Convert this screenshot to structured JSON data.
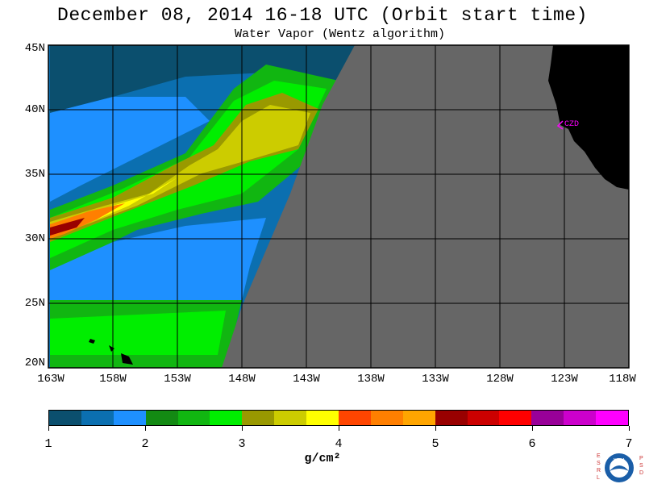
{
  "header": {
    "title": "December 08, 2014  16-18 UTC  (Orbit start time)",
    "subtitle": "Water Vapor (Wentz algorithm)"
  },
  "map": {
    "lat_labels": [
      "45N",
      "40N",
      "35N",
      "30N",
      "25N",
      "20N"
    ],
    "lon_labels": [
      "163W",
      "158W",
      "153W",
      "148W",
      "143W",
      "138W",
      "133W",
      "128W",
      "123W",
      "118W"
    ],
    "station_label": "CZD",
    "colors": {
      "no_data": "#666666",
      "land": "#000000",
      "station": "#ff00ff"
    }
  },
  "legend": {
    "colors": [
      "#0b4f6e",
      "#0b6fb0",
      "#1e90ff",
      "#138a13",
      "#11b611",
      "#00ee00",
      "#999900",
      "#cccc00",
      "#ffff00",
      "#ff4500",
      "#ff7f00",
      "#ffa500",
      "#990000",
      "#cc0000",
      "#ff0000",
      "#990099",
      "#cc00cc",
      "#ff00ff"
    ],
    "tick_labels": [
      "1",
      "2",
      "3",
      "4",
      "5",
      "6",
      "7"
    ],
    "units": "g/cm²"
  },
  "logo": {
    "left_letters": "ESRL",
    "right_letters": "PSD",
    "center_text": "NOAA"
  }
}
